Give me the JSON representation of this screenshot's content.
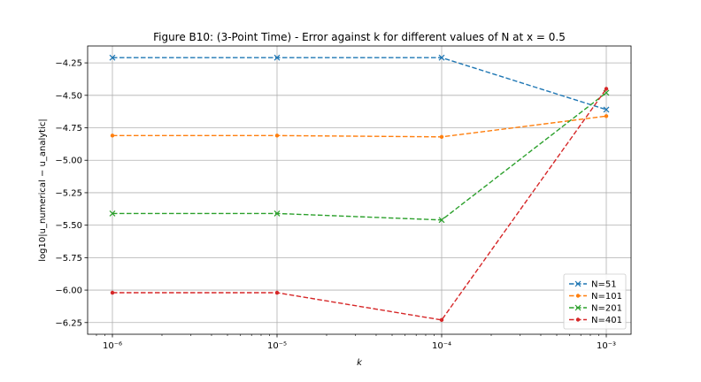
{
  "chart_data": {
    "type": "line",
    "title": "Figure B10: (3-Point Time) - Error against k for different values of N at x = 0.5",
    "xlabel": "k",
    "ylabel": "log10|u_numerical − u_analytic|",
    "x_scale": "log",
    "x": [
      1e-06,
      1e-05,
      0.0001,
      0.001
    ],
    "xtick_labels": [
      "10⁻⁶",
      "10⁻⁵",
      "10⁻⁴",
      "10⁻³"
    ],
    "ylim": [
      -6.34,
      -4.12
    ],
    "yticks": [
      -4.25,
      -4.5,
      -4.75,
      -5.0,
      -5.25,
      -5.5,
      -5.75,
      -6.0,
      -6.25
    ],
    "ytick_labels": [
      "−4.25",
      "−4.50",
      "−4.75",
      "−5.00",
      "−5.25",
      "−5.50",
      "−5.75",
      "−6.00",
      "−6.25"
    ],
    "grid": true,
    "legend_position": "lower-right",
    "series": [
      {
        "name": "N=51",
        "color": "#1f77b4",
        "marker": "x",
        "values": [
          -4.21,
          -4.21,
          -4.21,
          -4.61
        ]
      },
      {
        "name": "N=101",
        "color": "#ff7f0e",
        "marker": "dot",
        "values": [
          -4.81,
          -4.81,
          -4.82,
          -4.66
        ]
      },
      {
        "name": "N=201",
        "color": "#2ca02c",
        "marker": "x",
        "values": [
          -5.41,
          -5.41,
          -5.46,
          -4.48
        ]
      },
      {
        "name": "N=401",
        "color": "#d62728",
        "marker": "dot",
        "values": [
          -6.02,
          -6.02,
          -6.23,
          -4.45
        ]
      }
    ]
  }
}
